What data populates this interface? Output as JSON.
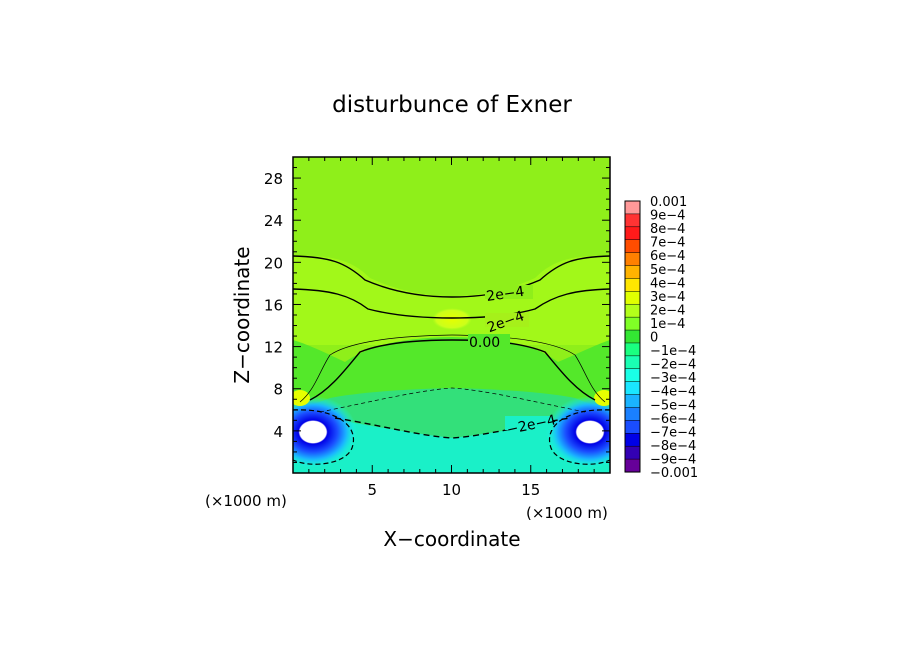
{
  "chart_data": {
    "type": "heatmap",
    "title": "disturbunce of Exner",
    "xlabel": "X−coordinate",
    "ylabel": "Z−coordinate",
    "x_unit_label_left": "(×1000 m)",
    "x_unit_label_right": "(×1000 m)",
    "xlim": [
      0,
      20
    ],
    "ylim": [
      0,
      30
    ],
    "xticks": [
      5,
      10,
      15
    ],
    "xtick_labels": [
      "5",
      "10",
      "15"
    ],
    "yticks": [
      4,
      8,
      12,
      16,
      20,
      24,
      28
    ],
    "ytick_labels": [
      "4",
      "8",
      "12",
      "16",
      "20",
      "24",
      "28"
    ],
    "colorbar": {
      "levels": [
        -0.001,
        -0.0009,
        -0.0008,
        -0.0007,
        -0.0006,
        -0.0005,
        -0.0004,
        -0.0003,
        -0.0002,
        -0.0001,
        0,
        0.0001,
        0.0002,
        0.0003,
        0.0004,
        0.0005,
        0.0006,
        0.0007,
        0.0008,
        0.0009,
        0.001
      ],
      "labels": [
        "0.001",
        "9e−4",
        "8e−4",
        "7e−4",
        "6e−4",
        "5e−4",
        "4e−4",
        "3e−4",
        "2e−4",
        "1e−4",
        "0",
        "−1e−4",
        "−2e−4",
        "−3e−4",
        "−4e−4",
        "−5e−4",
        "−6e−4",
        "−7e−4",
        "−8e−4",
        "−9e−4",
        "−0.001"
      ],
      "colors": [
        "#ff9999",
        "#ff3333",
        "#ff1a1a",
        "#ff4d00",
        "#ff8000",
        "#ffb300",
        "#ffe600",
        "#e0ff00",
        "#b3ff1a",
        "#80ff26",
        "#33e633",
        "#1aff80",
        "#1affb3",
        "#1affe6",
        "#1ae6ff",
        "#1ab3ff",
        "#1a80ff",
        "#1a4dff",
        "#0000e6",
        "#3300b3",
        "#660099"
      ]
    },
    "contour_labels": [
      "2e−4",
      "2e−4",
      "0.00",
      "−2e−4"
    ],
    "field_description_levels": {
      "upper_background": 0.0002,
      "band_z16_20": 0.0003,
      "center_blob_z15": 0.0004,
      "lower_plateau_z6_12": 0.0001,
      "bottom_layer": -0.0003,
      "vortex_core": -0.001
    },
    "grid": false
  }
}
